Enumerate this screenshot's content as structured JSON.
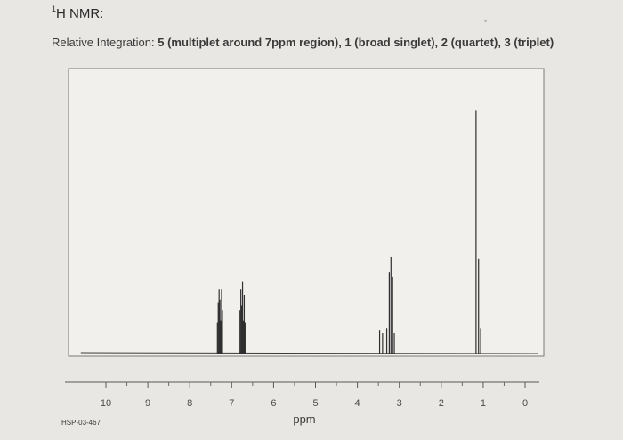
{
  "header": {
    "nucleus_sup": "1",
    "nucleus_rest": "H NMR:",
    "integration_label": "Relative Integration:",
    "integration_values": "5 (multiplet around 7ppm region), 1 (broad singlet), 2 (quartet), 3 (triplet)"
  },
  "chart_data": {
    "type": "line",
    "title": "",
    "xlabel": "ppm",
    "ylabel": "",
    "x_reversed": true,
    "xlim": [
      10.8,
      -0.4
    ],
    "ylim": [
      0,
      1
    ],
    "grid": false,
    "ticks": [
      10,
      9,
      8,
      7,
      6,
      5,
      4,
      3,
      2,
      1,
      0
    ],
    "tick_labels": [
      "10",
      "9",
      "8",
      "7",
      "6",
      "5",
      "4",
      "3",
      "2",
      "1",
      "0"
    ],
    "annotation": "HSP-03-467",
    "series": [
      {
        "peaks": [
          {
            "x": 7.34,
            "h": 0.12
          },
          {
            "x": 7.32,
            "h": 0.2
          },
          {
            "x": 7.3,
            "h": 0.25
          },
          {
            "x": 7.28,
            "h": 0.21
          },
          {
            "x": 7.26,
            "h": 0.13
          },
          {
            "x": 7.24,
            "h": 0.25
          },
          {
            "x": 7.22,
            "h": 0.17
          },
          {
            "x": 6.8,
            "h": 0.17
          },
          {
            "x": 6.78,
            "h": 0.25
          },
          {
            "x": 6.76,
            "h": 0.19
          },
          {
            "x": 6.74,
            "h": 0.28
          },
          {
            "x": 6.72,
            "h": 0.13
          },
          {
            "x": 6.7,
            "h": 0.23
          },
          {
            "x": 6.68,
            "h": 0.12
          },
          {
            "x": 3.47,
            "h": 0.09
          },
          {
            "x": 3.4,
            "h": 0.08
          },
          {
            "x": 3.3,
            "h": 0.1
          },
          {
            "x": 3.24,
            "h": 0.32
          },
          {
            "x": 3.2,
            "h": 0.38
          },
          {
            "x": 3.16,
            "h": 0.3
          },
          {
            "x": 3.12,
            "h": 0.08
          },
          {
            "x": 1.17,
            "h": 0.95
          },
          {
            "x": 1.11,
            "h": 0.37
          },
          {
            "x": 1.06,
            "h": 0.1
          }
        ]
      }
    ]
  }
}
